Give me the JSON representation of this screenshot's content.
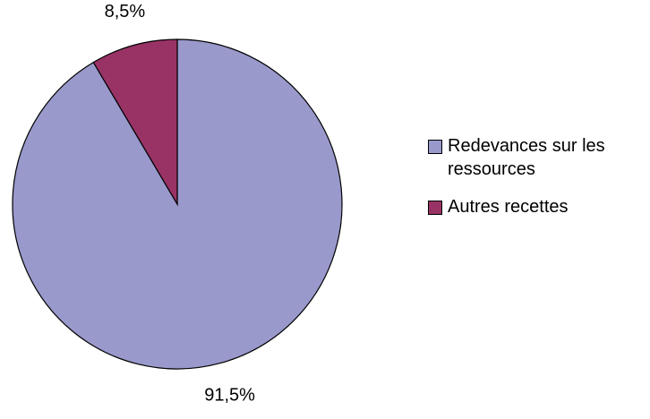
{
  "chart_data": {
    "type": "pie",
    "categories": [
      "Redevances sur les ressources",
      "Autres recettes"
    ],
    "values": [
      91.5,
      8.5
    ],
    "value_labels": [
      "91,5%",
      "8,5%"
    ],
    "colors": [
      "#9999cc",
      "#993366"
    ],
    "legend": "right"
  }
}
